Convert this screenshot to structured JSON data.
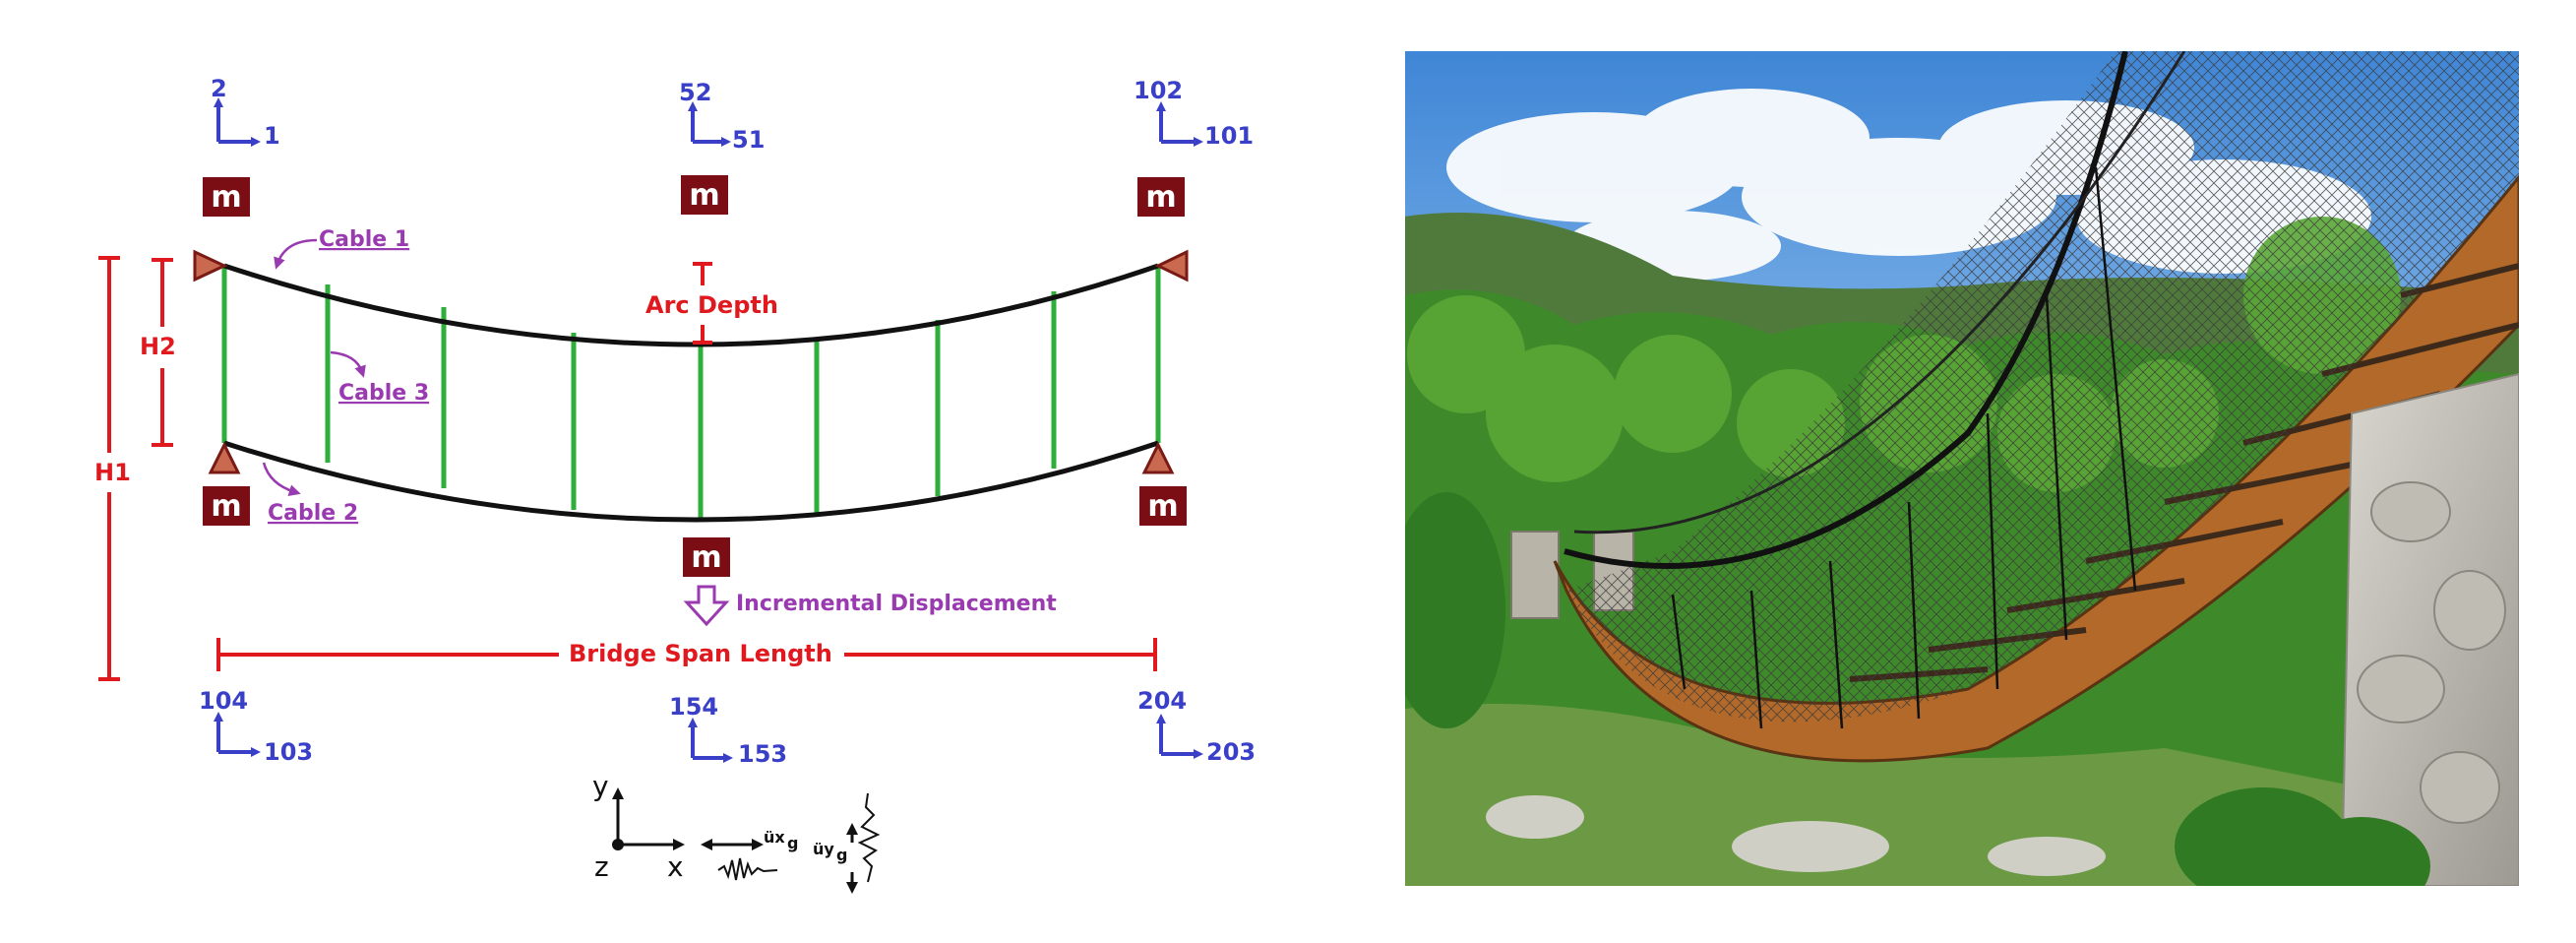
{
  "colors": {
    "node_blue": "#3a3fc8",
    "dimension_red": "#e0191f",
    "annotation_purple": "#9a3ab0",
    "mass_box": "#7a0e14",
    "hanger_green": "#2eae3a",
    "cable_black": "#111111",
    "support_fill": "#c96a50"
  },
  "diagram": {
    "nodes": {
      "top_left": {
        "vertical": "2",
        "horizontal": "1"
      },
      "top_mid": {
        "vertical": "52",
        "horizontal": "51"
      },
      "top_right": {
        "vertical": "102",
        "horizontal": "101"
      },
      "bot_left": {
        "vertical": "104",
        "horizontal": "103"
      },
      "bot_mid": {
        "vertical": "154",
        "horizontal": "153"
      },
      "bot_right": {
        "vertical": "204",
        "horizontal": "203"
      }
    },
    "mass_label": "m",
    "labels": {
      "cable1": "Cable 1",
      "cable2": "Cable 2",
      "cable3": "Cable 3",
      "arc_depth": "Arc Depth",
      "h1": "H1",
      "h2": "H2",
      "incremental_displacement": "Incremental Displacement",
      "span_length": "Bridge Span Length"
    },
    "axes": {
      "y": "y",
      "x": "x",
      "z": "z",
      "ground_x": "üx",
      "ground_x_sub": "g",
      "ground_y": "üy",
      "ground_y_sub": "g"
    }
  },
  "photo": {
    "subject": "suspension footbridge with wooden deck over a green valley"
  }
}
